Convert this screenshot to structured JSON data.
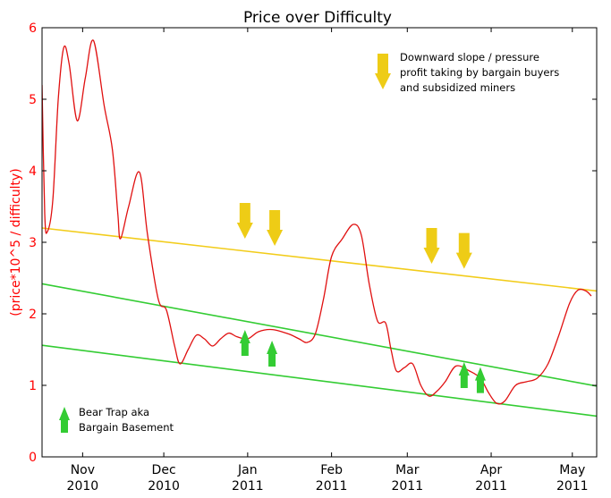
{
  "chart_data": {
    "type": "line",
    "title": "Price over Difficulty",
    "ylabel": "(price*10^5 / difficulty)",
    "xlabel": "",
    "ylim": [
      0,
      6
    ],
    "yticks": [
      "0",
      "1",
      "2",
      "3",
      "4",
      "5",
      "6"
    ],
    "xlim": [
      "2010-10-17",
      "2011-05-10"
    ],
    "xticks": [
      {
        "date": "2010-11-01",
        "line1": "Nov",
        "line2": "2010"
      },
      {
        "date": "2010-12-01",
        "line1": "Dec",
        "line2": "2010"
      },
      {
        "date": "2011-01-01",
        "line1": "Jan",
        "line2": "2011"
      },
      {
        "date": "2011-02-01",
        "line1": "Feb",
        "line2": "2011"
      },
      {
        "date": "2011-03-01",
        "line1": "Mar",
        "line2": "2011"
      },
      {
        "date": "2011-04-01",
        "line1": "Apr",
        "line2": "2011"
      },
      {
        "date": "2011-05-01",
        "line1": "May",
        "line2": "2011"
      }
    ],
    "grid": false,
    "colors": {
      "price": "#e01010",
      "resistance": "#f2cc1a",
      "support": "#33cc33",
      "axis_tick_labels": "#ff0000",
      "down_arrow": "#eecc16",
      "up_arrow": "#33cc33"
    },
    "series": [
      {
        "role": "price",
        "points": [
          [
            "2010-10-17",
            5.2
          ],
          [
            "2010-10-18",
            3.4
          ],
          [
            "2010-10-19",
            3.15
          ],
          [
            "2010-10-21",
            3.6
          ],
          [
            "2010-10-23",
            5.0
          ],
          [
            "2010-10-25",
            5.72
          ],
          [
            "2010-10-27",
            5.5
          ],
          [
            "2010-10-30",
            4.7
          ],
          [
            "2010-11-02",
            5.3
          ],
          [
            "2010-11-05",
            5.82
          ],
          [
            "2010-11-09",
            4.9
          ],
          [
            "2010-11-12",
            4.3
          ],
          [
            "2010-11-14",
            3.4
          ],
          [
            "2010-11-15",
            3.05
          ],
          [
            "2010-11-18",
            3.5
          ],
          [
            "2010-11-22",
            3.98
          ],
          [
            "2010-11-25",
            3.1
          ],
          [
            "2010-11-29",
            2.2
          ],
          [
            "2010-12-02",
            2.05
          ],
          [
            "2010-12-05",
            1.55
          ],
          [
            "2010-12-07",
            1.3
          ],
          [
            "2010-12-10",
            1.5
          ],
          [
            "2010-12-13",
            1.7
          ],
          [
            "2010-12-16",
            1.65
          ],
          [
            "2010-12-19",
            1.55
          ],
          [
            "2010-12-22",
            1.65
          ],
          [
            "2010-12-25",
            1.73
          ],
          [
            "2010-12-28",
            1.68
          ],
          [
            "2011-01-01",
            1.65
          ],
          [
            "2011-01-05",
            1.75
          ],
          [
            "2011-01-10",
            1.78
          ],
          [
            "2011-01-16",
            1.72
          ],
          [
            "2011-01-20",
            1.65
          ],
          [
            "2011-01-23",
            1.6
          ],
          [
            "2011-01-26",
            1.72
          ],
          [
            "2011-01-29",
            2.2
          ],
          [
            "2011-02-01",
            2.8
          ],
          [
            "2011-02-05",
            3.05
          ],
          [
            "2011-02-09",
            3.25
          ],
          [
            "2011-02-12",
            3.1
          ],
          [
            "2011-02-15",
            2.4
          ],
          [
            "2011-02-18",
            1.9
          ],
          [
            "2011-02-21",
            1.87
          ],
          [
            "2011-02-23",
            1.5
          ],
          [
            "2011-02-25",
            1.2
          ],
          [
            "2011-02-28",
            1.25
          ],
          [
            "2011-03-03",
            1.3
          ],
          [
            "2011-03-06",
            1.0
          ],
          [
            "2011-03-09",
            0.85
          ],
          [
            "2011-03-12",
            0.92
          ],
          [
            "2011-03-15",
            1.05
          ],
          [
            "2011-03-19",
            1.27
          ],
          [
            "2011-03-24",
            1.2
          ],
          [
            "2011-03-28",
            1.1
          ],
          [
            "2011-03-31",
            0.9
          ],
          [
            "2011-04-03",
            0.75
          ],
          [
            "2011-04-06",
            0.78
          ],
          [
            "2011-04-10",
            1.0
          ],
          [
            "2011-04-14",
            1.05
          ],
          [
            "2011-04-18",
            1.1
          ],
          [
            "2011-04-22",
            1.3
          ],
          [
            "2011-04-26",
            1.7
          ],
          [
            "2011-04-30",
            2.15
          ],
          [
            "2011-05-03",
            2.33
          ],
          [
            "2011-05-06",
            2.32
          ],
          [
            "2011-05-08",
            2.25
          ]
        ]
      },
      {
        "role": "resistance",
        "points": [
          [
            "2010-10-17",
            3.2
          ],
          [
            "2011-05-10",
            2.32
          ]
        ]
      },
      {
        "role": "support",
        "points": [
          [
            "2010-10-17",
            2.42
          ],
          [
            "2011-05-10",
            0.99
          ]
        ]
      },
      {
        "role": "support",
        "points": [
          [
            "2010-10-17",
            1.56
          ],
          [
            "2011-05-10",
            0.57
          ]
        ]
      }
    ],
    "annotations": [
      {
        "kind": "down-arrow",
        "x": "2010-12-31",
        "y": 3.05
      },
      {
        "kind": "down-arrow",
        "x": "2011-01-11",
        "y": 2.95
      },
      {
        "kind": "down-arrow",
        "x": "2011-03-10",
        "y": 2.7
      },
      {
        "kind": "down-arrow",
        "x": "2011-03-22",
        "y": 2.63
      },
      {
        "kind": "up-arrow",
        "x": "2010-12-31",
        "y": 1.5
      },
      {
        "kind": "up-arrow",
        "x": "2011-01-10",
        "y": 1.35
      },
      {
        "kind": "up-arrow",
        "x": "2011-03-22",
        "y": 1.05
      },
      {
        "kind": "up-arrow",
        "x": "2011-03-28",
        "y": 0.98
      }
    ],
    "legend_notes": {
      "down": [
        "Downward slope / pressure",
        "profit taking by bargain buyers",
        "and subsidized miners"
      ],
      "up": [
        "Bear Trap   aka",
        "Bargain Basement"
      ]
    }
  }
}
